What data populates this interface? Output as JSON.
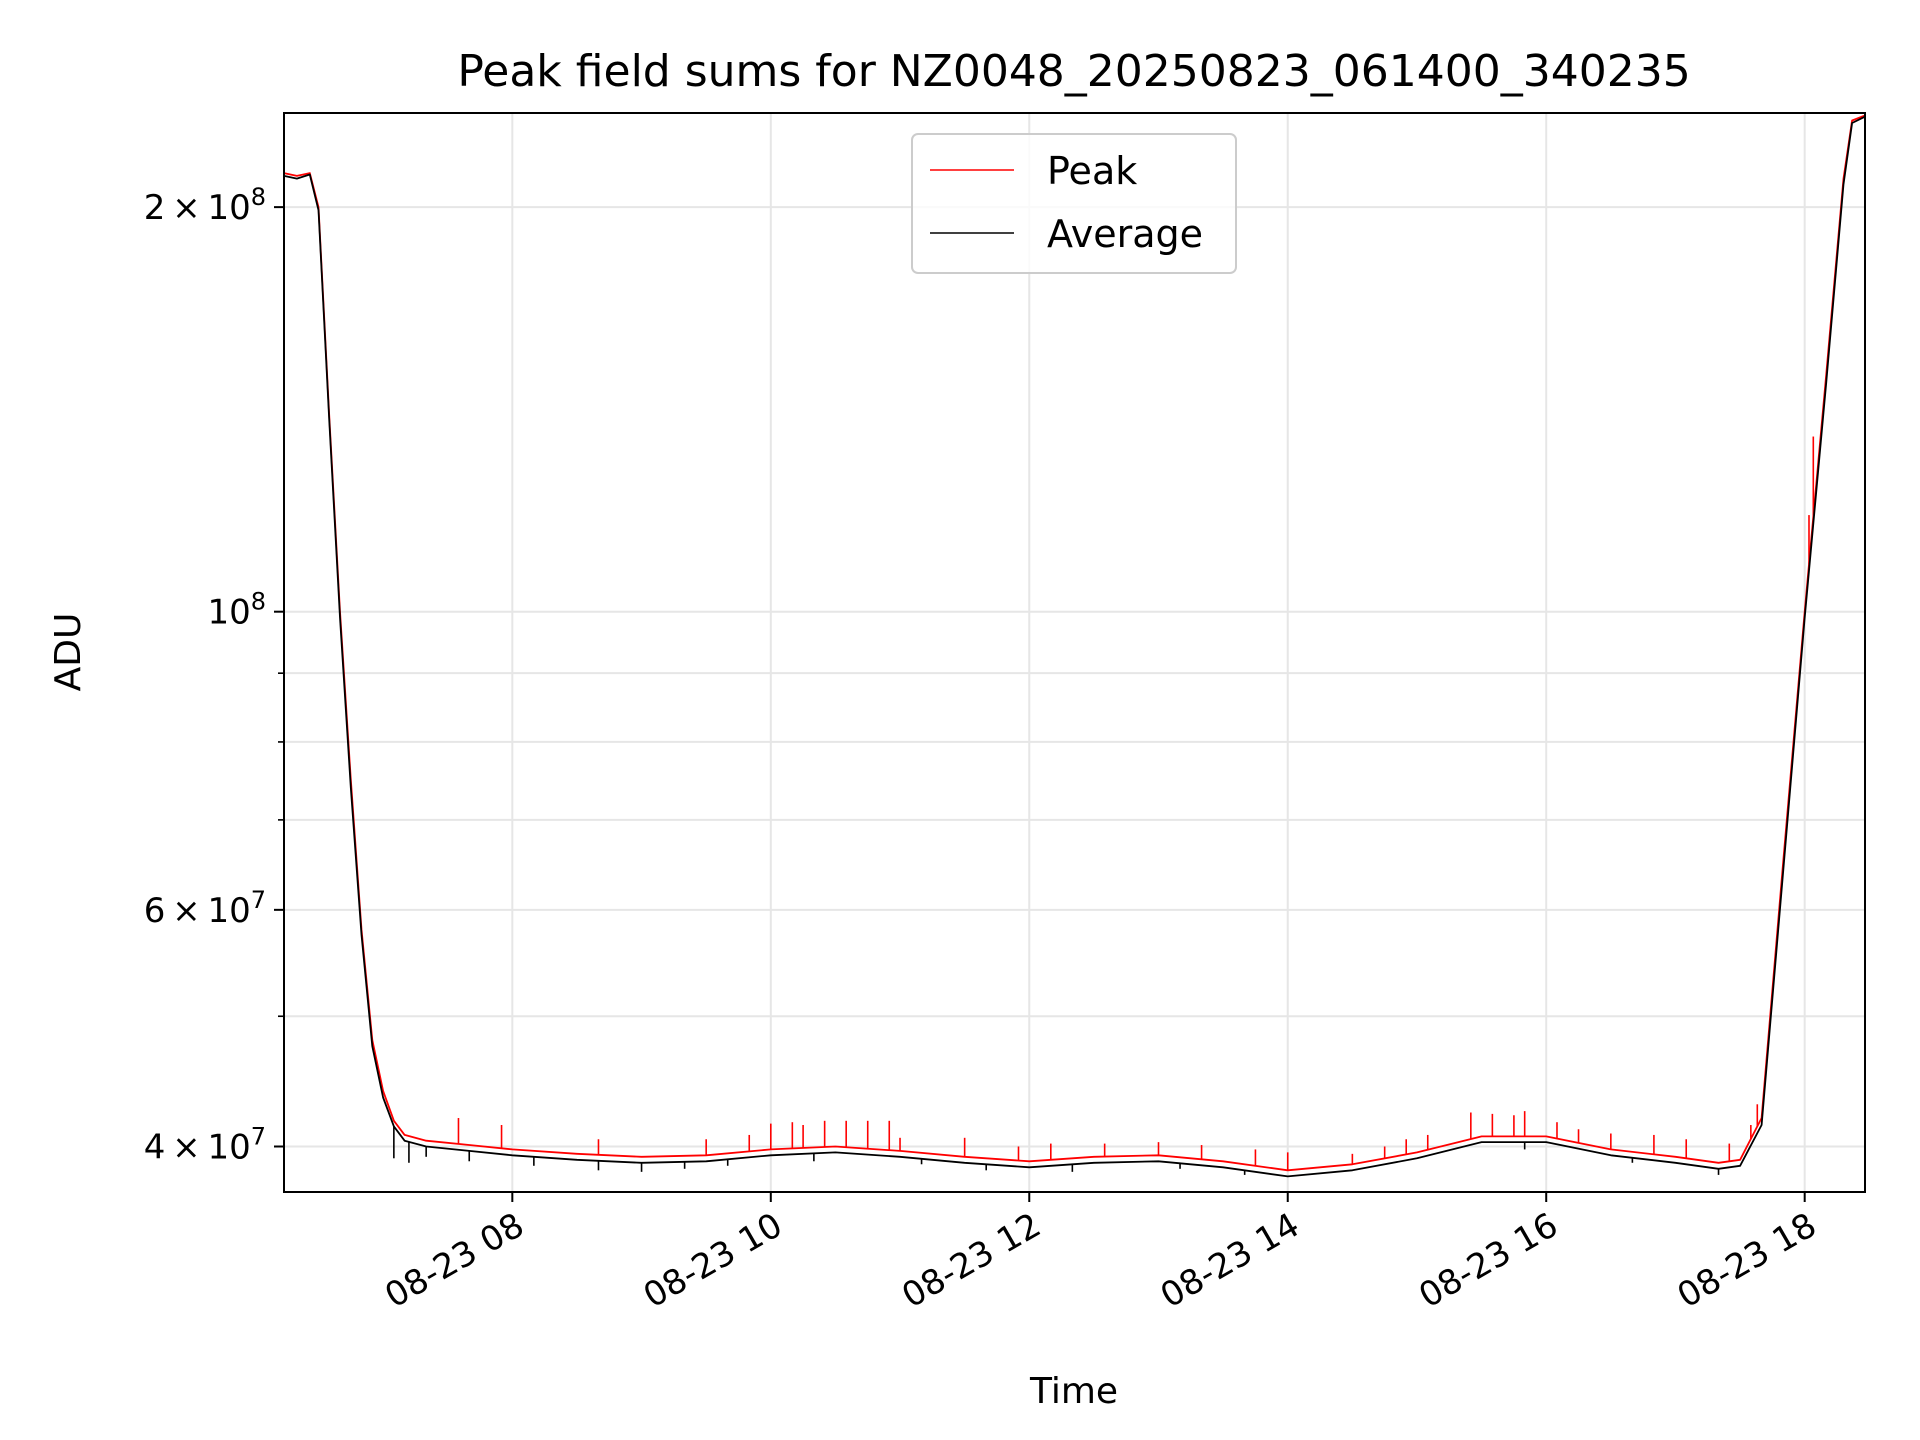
{
  "chart_data": {
    "type": "line",
    "title": "Peak field sums for NZ0048_20250823_061400_340235",
    "xlabel": "Time",
    "ylabel": "ADU",
    "y_scale": "log",
    "ylim": [
      37000000,
      235000000
    ],
    "xlim": [
      "2025-08-23 06:14",
      "2025-08-23 18:28"
    ],
    "grid": true,
    "legend_position": "upper center",
    "x_ticks": [
      {
        "x": "2025-08-23 08:00",
        "label": "08-23 08"
      },
      {
        "x": "2025-08-23 10:00",
        "label": "08-23 10"
      },
      {
        "x": "2025-08-23 12:00",
        "label": "08-23 12"
      },
      {
        "x": "2025-08-23 14:00",
        "label": "08-23 14"
      },
      {
        "x": "2025-08-23 16:00",
        "label": "08-23 16"
      },
      {
        "x": "2025-08-23 18:00",
        "label": "08-23 18"
      }
    ],
    "y_ticks": [
      {
        "y": 40000000,
        "mantissa": "4",
        "exp": "7"
      },
      {
        "y": 60000000,
        "mantissa": "6",
        "exp": "7"
      },
      {
        "y": 100000000,
        "mantissa": "",
        "exp": "8"
      },
      {
        "y": 200000000,
        "mantissa": "2",
        "exp": "8"
      }
    ],
    "y_minor_ticks": [
      50000000,
      70000000,
      80000000,
      90000000
    ],
    "series": [
      {
        "name": "Peak",
        "color": "#ff0000",
        "points": [
          [
            "2025-08-23 06:14",
            212000000
          ],
          [
            "2025-08-23 06:20",
            211000000
          ],
          [
            "2025-08-23 06:26",
            212000000
          ],
          [
            "2025-08-23 06:30",
            200000000
          ],
          [
            "2025-08-23 06:35",
            140000000
          ],
          [
            "2025-08-23 06:40",
            100000000
          ],
          [
            "2025-08-23 06:45",
            75000000
          ],
          [
            "2025-08-23 06:50",
            58000000
          ],
          [
            "2025-08-23 06:55",
            48000000
          ],
          [
            "2025-08-23 07:00",
            44000000
          ],
          [
            "2025-08-23 07:05",
            41800000
          ],
          [
            "2025-08-23 07:10",
            40800000
          ],
          [
            "2025-08-23 07:20",
            40400000
          ],
          [
            "2025-08-23 07:40",
            40100000
          ],
          [
            "2025-08-23 08:00",
            39800000
          ],
          [
            "2025-08-23 08:30",
            39500000
          ],
          [
            "2025-08-23 09:00",
            39300000
          ],
          [
            "2025-08-23 09:30",
            39400000
          ],
          [
            "2025-08-23 10:00",
            39800000
          ],
          [
            "2025-08-23 10:30",
            40000000
          ],
          [
            "2025-08-23 11:00",
            39700000
          ],
          [
            "2025-08-23 11:30",
            39300000
          ],
          [
            "2025-08-23 12:00",
            39000000
          ],
          [
            "2025-08-23 12:30",
            39300000
          ],
          [
            "2025-08-23 13:00",
            39400000
          ],
          [
            "2025-08-23 13:30",
            39000000
          ],
          [
            "2025-08-23 14:00",
            38400000
          ],
          [
            "2025-08-23 14:30",
            38800000
          ],
          [
            "2025-08-23 15:00",
            39600000
          ],
          [
            "2025-08-23 15:30",
            40700000
          ],
          [
            "2025-08-23 16:00",
            40700000
          ],
          [
            "2025-08-23 16:30",
            39800000
          ],
          [
            "2025-08-23 17:00",
            39300000
          ],
          [
            "2025-08-23 17:20",
            38900000
          ],
          [
            "2025-08-23 17:30",
            39100000
          ],
          [
            "2025-08-23 17:40",
            42000000
          ],
          [
            "2025-08-23 17:50",
            65000000
          ],
          [
            "2025-08-23 18:00",
            100000000
          ],
          [
            "2025-08-23 18:10",
            150000000
          ],
          [
            "2025-08-23 18:18",
            210000000
          ],
          [
            "2025-08-23 18:22",
            232000000
          ],
          [
            "2025-08-23 18:28",
            234000000
          ]
        ],
        "spikes": [
          [
            "2025-08-23 07:35",
            42000000
          ],
          [
            "2025-08-23 07:55",
            41500000
          ],
          [
            "2025-08-23 08:40",
            40500000
          ],
          [
            "2025-08-23 09:30",
            40500000
          ],
          [
            "2025-08-23 09:50",
            40800000
          ],
          [
            "2025-08-23 10:00",
            41600000
          ],
          [
            "2025-08-23 10:10",
            41700000
          ],
          [
            "2025-08-23 10:15",
            41500000
          ],
          [
            "2025-08-23 10:25",
            41800000
          ],
          [
            "2025-08-23 10:35",
            41800000
          ],
          [
            "2025-08-23 10:45",
            41800000
          ],
          [
            "2025-08-23 10:55",
            41800000
          ],
          [
            "2025-08-23 11:00",
            40600000
          ],
          [
            "2025-08-23 11:30",
            40600000
          ],
          [
            "2025-08-23 11:55",
            40000000
          ],
          [
            "2025-08-23 12:10",
            40200000
          ],
          [
            "2025-08-23 12:35",
            40200000
          ],
          [
            "2025-08-23 13:00",
            40300000
          ],
          [
            "2025-08-23 13:20",
            40100000
          ],
          [
            "2025-08-23 13:45",
            39800000
          ],
          [
            "2025-08-23 14:00",
            39600000
          ],
          [
            "2025-08-23 14:30",
            39500000
          ],
          [
            "2025-08-23 14:45",
            40000000
          ],
          [
            "2025-08-23 14:55",
            40500000
          ],
          [
            "2025-08-23 15:05",
            40800000
          ],
          [
            "2025-08-23 15:25",
            42400000
          ],
          [
            "2025-08-23 15:35",
            42300000
          ],
          [
            "2025-08-23 15:45",
            42200000
          ],
          [
            "2025-08-23 15:50",
            42500000
          ],
          [
            "2025-08-23 16:05",
            41700000
          ],
          [
            "2025-08-23 16:15",
            41200000
          ],
          [
            "2025-08-23 16:30",
            40900000
          ],
          [
            "2025-08-23 16:50",
            40800000
          ],
          [
            "2025-08-23 17:05",
            40500000
          ],
          [
            "2025-08-23 17:25",
            40200000
          ],
          [
            "2025-08-23 17:35",
            41500000
          ],
          [
            "2025-08-23 17:38",
            43000000
          ],
          [
            "2025-08-23 18:02",
            118000000
          ],
          [
            "2025-08-23 18:04",
            135000000
          ]
        ]
      },
      {
        "name": "Average",
        "color": "#000000",
        "points": [
          [
            "2025-08-23 06:14",
            211000000
          ],
          [
            "2025-08-23 06:20",
            210000000
          ],
          [
            "2025-08-23 06:26",
            211500000
          ],
          [
            "2025-08-23 06:30",
            199000000
          ],
          [
            "2025-08-23 06:35",
            139000000
          ],
          [
            "2025-08-23 06:40",
            99000000
          ],
          [
            "2025-08-23 06:45",
            74000000
          ],
          [
            "2025-08-23 06:50",
            57500000
          ],
          [
            "2025-08-23 06:55",
            47500000
          ],
          [
            "2025-08-23 07:00",
            43500000
          ],
          [
            "2025-08-23 07:05",
            41400000
          ],
          [
            "2025-08-23 07:10",
            40400000
          ],
          [
            "2025-08-23 07:20",
            40000000
          ],
          [
            "2025-08-23 07:40",
            39700000
          ],
          [
            "2025-08-23 08:00",
            39400000
          ],
          [
            "2025-08-23 08:30",
            39100000
          ],
          [
            "2025-08-23 09:00",
            38900000
          ],
          [
            "2025-08-23 09:30",
            39000000
          ],
          [
            "2025-08-23 10:00",
            39400000
          ],
          [
            "2025-08-23 10:30",
            39600000
          ],
          [
            "2025-08-23 11:00",
            39300000
          ],
          [
            "2025-08-23 11:30",
            38900000
          ],
          [
            "2025-08-23 12:00",
            38600000
          ],
          [
            "2025-08-23 12:30",
            38900000
          ],
          [
            "2025-08-23 13:00",
            39000000
          ],
          [
            "2025-08-23 13:30",
            38600000
          ],
          [
            "2025-08-23 14:00",
            38000000
          ],
          [
            "2025-08-23 14:30",
            38400000
          ],
          [
            "2025-08-23 15:00",
            39200000
          ],
          [
            "2025-08-23 15:30",
            40300000
          ],
          [
            "2025-08-23 16:00",
            40300000
          ],
          [
            "2025-08-23 16:30",
            39400000
          ],
          [
            "2025-08-23 17:00",
            38900000
          ],
          [
            "2025-08-23 17:20",
            38500000
          ],
          [
            "2025-08-23 17:30",
            38700000
          ],
          [
            "2025-08-23 17:40",
            41500000
          ],
          [
            "2025-08-23 17:50",
            64000000
          ],
          [
            "2025-08-23 18:00",
            99000000
          ],
          [
            "2025-08-23 18:10",
            148000000
          ],
          [
            "2025-08-23 18:18",
            208000000
          ],
          [
            "2025-08-23 18:22",
            231000000
          ],
          [
            "2025-08-23 18:28",
            233500000
          ]
        ],
        "dips": [
          [
            "2025-08-23 07:05",
            39200000
          ],
          [
            "2025-08-23 07:12",
            38900000
          ],
          [
            "2025-08-23 07:20",
            39300000
          ],
          [
            "2025-08-23 07:40",
            39000000
          ],
          [
            "2025-08-23 08:10",
            38700000
          ],
          [
            "2025-08-23 08:40",
            38400000
          ],
          [
            "2025-08-23 09:00",
            38300000
          ],
          [
            "2025-08-23 09:20",
            38500000
          ],
          [
            "2025-08-23 09:40",
            38700000
          ],
          [
            "2025-08-23 10:20",
            39000000
          ],
          [
            "2025-08-23 11:10",
            38800000
          ],
          [
            "2025-08-23 11:40",
            38400000
          ],
          [
            "2025-08-23 12:20",
            38300000
          ],
          [
            "2025-08-23 13:10",
            38500000
          ],
          [
            "2025-08-23 13:40",
            38100000
          ],
          [
            "2025-08-23 15:50",
            39800000
          ],
          [
            "2025-08-23 16:40",
            38900000
          ],
          [
            "2025-08-23 17:20",
            38100000
          ]
        ]
      }
    ]
  }
}
